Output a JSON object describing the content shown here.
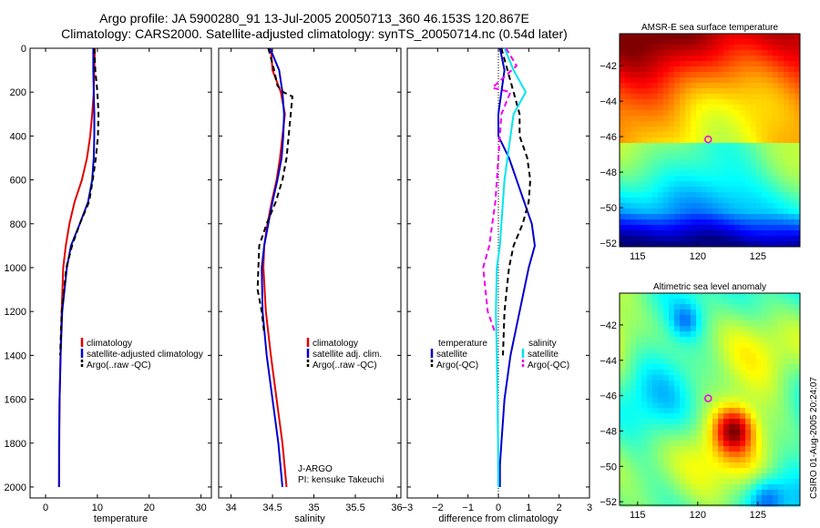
{
  "title_line1": "Argo profile: JA 5900280_91 13-Jul-2005 20050713_360 46.153S 120.867E",
  "title_line2": "Climatology: CARS2000. Satellite-adjusted climatology: synTS_20050714.nc (0.54d later)",
  "credit": "CSIRO 01-Aug-2005 20:24:07",
  "colors": {
    "red": "#e00000",
    "blue": "#0000cc",
    "black": "#000000",
    "cyan": "#00e5ee",
    "magenta": "#ee00ee"
  },
  "chart_data": [
    {
      "type": "line",
      "xlabel": "temperature",
      "ylabel": "",
      "xlim": [
        -3,
        32
      ],
      "ylim": [
        2050,
        0
      ],
      "y_reversed": true,
      "xticks": [
        0,
        10,
        20,
        30
      ],
      "yticks": [
        0,
        200,
        400,
        600,
        800,
        1000,
        1200,
        1400,
        1600,
        1800,
        2000
      ],
      "legend": {
        "position": "center-right",
        "entries": [
          "climatology",
          "satellite-adjusted climatology",
          "Argo(..raw -QC)"
        ]
      },
      "series": [
        {
          "name": "climatology",
          "color": "red",
          "dash": false,
          "x": [
            9.5,
            9.4,
            9.3,
            9.0,
            8.6,
            8.0,
            7.0,
            5.6,
            4.6,
            3.9,
            3.4,
            3.1,
            2.9,
            2.7,
            2.65,
            2.6
          ],
          "y": [
            0,
            100,
            200,
            300,
            400,
            500,
            600,
            700,
            800,
            900,
            1000,
            1200,
            1400,
            1600,
            1800,
            2000
          ]
        },
        {
          "name": "satellite-adjusted climatology",
          "color": "blue",
          "dash": false,
          "x": [
            9.2,
            9.2,
            9.3,
            9.4,
            9.4,
            9.3,
            9.0,
            8.2,
            6.6,
            4.9,
            4.1,
            3.2,
            2.9,
            2.7,
            2.6,
            2.6
          ],
          "y": [
            0,
            100,
            200,
            300,
            400,
            500,
            600,
            700,
            800,
            900,
            1000,
            1200,
            1400,
            1600,
            1800,
            2000
          ]
        },
        {
          "name": "Argo(..raw -QC)",
          "color": "black",
          "dash": true,
          "x": [
            9.4,
            9.6,
            10.0,
            10.2,
            10.1,
            9.7,
            9.1,
            8.4,
            6.6,
            5.1,
            4.0,
            3.1,
            2.8
          ],
          "y": [
            0,
            100,
            200,
            300,
            400,
            500,
            600,
            700,
            800,
            900,
            1000,
            1200,
            1400
          ]
        }
      ]
    },
    {
      "type": "line",
      "xlabel": "salinity",
      "xlim": [
        33.85,
        36.05
      ],
      "ylim": [
        2050,
        0
      ],
      "y_reversed": true,
      "xticks": [
        34,
        34.5,
        35,
        35.5,
        36
      ],
      "yticks": [
        0,
        200,
        400,
        600,
        800,
        1000,
        1200,
        1400,
        1600,
        1800,
        2000
      ],
      "legend": {
        "position": "center-right",
        "entries": [
          "climatology",
          "satellite adj. clim.",
          "Argo(..raw -QC)"
        ]
      },
      "annotations": [
        "J-ARGO",
        "PI: kensuke Takeuchi"
      ],
      "series": [
        {
          "name": "climatology",
          "color": "red",
          "dash": false,
          "x": [
            34.48,
            34.5,
            34.6,
            34.65,
            34.62,
            34.59,
            34.55,
            34.49,
            34.44,
            34.4,
            34.39,
            34.42,
            34.48,
            34.55,
            34.62,
            34.67
          ],
          "y": [
            0,
            100,
            200,
            300,
            400,
            500,
            600,
            700,
            800,
            900,
            1000,
            1200,
            1400,
            1600,
            1800,
            2000
          ]
        },
        {
          "name": "satellite adj. clim.",
          "color": "blue",
          "dash": false,
          "x": [
            34.47,
            34.58,
            34.62,
            34.64,
            34.63,
            34.61,
            34.56,
            34.5,
            34.45,
            34.4,
            34.37,
            34.38,
            34.43,
            34.5,
            34.57,
            34.62
          ],
          "y": [
            0,
            100,
            200,
            300,
            400,
            500,
            600,
            700,
            800,
            900,
            1000,
            1200,
            1400,
            1600,
            1800,
            2000
          ]
        },
        {
          "name": "Argo(..raw -QC)",
          "color": "black",
          "dash": true,
          "x": [
            34.45,
            34.52,
            34.56,
            34.63,
            34.74,
            34.72,
            34.67,
            34.62,
            34.54,
            34.43,
            34.34,
            34.32,
            34.37,
            34.4
          ],
          "y": [
            0,
            100,
            170,
            200,
            220,
            300,
            500,
            600,
            700,
            800,
            900,
            1100,
            1200,
            1300
          ]
        }
      ]
    },
    {
      "type": "line",
      "xlabel": "difference from climatology",
      "xlim": [
        -3,
        3
      ],
      "ylim": [
        2050,
        0
      ],
      "y_reversed": true,
      "xticks": [
        -3,
        -2,
        -1,
        0,
        1,
        2,
        3
      ],
      "yticks": [
        0,
        200,
        400,
        600,
        800,
        1000,
        1200,
        1400,
        1600,
        1800,
        2000
      ],
      "legend_left": {
        "header": "temperature",
        "entries": [
          "satellite",
          "Argo(-QC)"
        ]
      },
      "legend_right": {
        "header": "salinity",
        "entries": [
          "satellite",
          "Argo(-QC)"
        ]
      },
      "series": [
        {
          "name": "temperature satellite",
          "color": "blue",
          "dash": false,
          "x": [
            0.05,
            0.2,
            0.1,
            0.0,
            0.0,
            0.35,
            0.6,
            0.85,
            1.1,
            1.2,
            1.0,
            0.7,
            0.4,
            0.2,
            0.1,
            0.05,
            0.05
          ],
          "y": [
            0,
            100,
            200,
            300,
            400,
            500,
            600,
            700,
            800,
            900,
            1000,
            1200,
            1400,
            1600,
            1800,
            1900,
            2000
          ]
        },
        {
          "name": "temperature Argo(-QC)",
          "color": "black",
          "dash": true,
          "x": [
            0.1,
            0.3,
            0.5,
            0.7,
            0.7,
            0.95,
            1.05,
            1.0,
            0.8,
            0.5,
            0.35,
            0.2,
            0.15
          ],
          "y": [
            0,
            100,
            200,
            300,
            400,
            500,
            600,
            700,
            800,
            900,
            1000,
            1200,
            1400
          ]
        },
        {
          "name": "salinity satellite",
          "color": "cyan",
          "dash": false,
          "x": [
            0.2,
            0.5,
            0.9,
            0.5,
            0.4,
            0.3,
            0.2,
            0.15,
            0.1,
            0.05,
            -0.05,
            -0.08,
            -0.05,
            -0.03,
            -0.01,
            0.0
          ],
          "y": [
            0,
            100,
            200,
            300,
            400,
            500,
            600,
            700,
            800,
            900,
            1000,
            1200,
            1400,
            1600,
            1800,
            2000
          ]
        },
        {
          "name": "salinity Argo(-QC)",
          "color": "magenta",
          "dash": true,
          "x": [
            0.25,
            0.6,
            -0.2,
            0.4,
            0.1,
            0.0,
            -0.05,
            -0.1,
            -0.2,
            -0.3,
            -0.5,
            -0.35,
            -0.1
          ],
          "y": [
            0,
            80,
            180,
            200,
            300,
            500,
            600,
            700,
            800,
            900,
            1000,
            1200,
            1300
          ]
        }
      ]
    },
    {
      "type": "heatmap",
      "title": "AMSR-E sea surface temperature",
      "xlim": [
        113.5,
        128.5
      ],
      "ylim": [
        -52.2,
        -40.2
      ],
      "xticks": [
        115,
        120,
        125
      ],
      "yticks": [
        -42,
        -44,
        -46,
        -48,
        -50,
        -52
      ],
      "marker": {
        "lon": 120.867,
        "lat": -46.153,
        "color": "magenta"
      }
    },
    {
      "type": "heatmap",
      "title": "Altimetric sea level anomaly",
      "xlim": [
        113.5,
        128.5
      ],
      "ylim": [
        -52.2,
        -40.2
      ],
      "xticks": [
        115,
        120,
        125
      ],
      "yticks": [
        -42,
        -44,
        -46,
        -48,
        -50,
        -52
      ],
      "marker": {
        "lon": 120.867,
        "lat": -46.153,
        "color": "magenta"
      }
    }
  ]
}
